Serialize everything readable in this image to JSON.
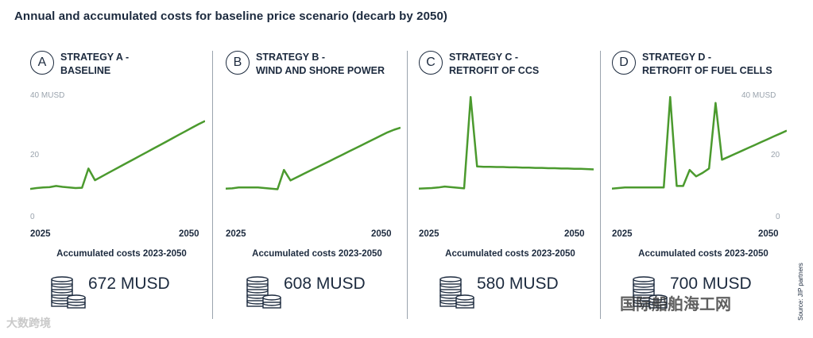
{
  "title": "Annual and accumulated costs for baseline price scenario (decarb by 2050)",
  "source": "Source: JIP partners",
  "watermarks": {
    "left": "大数跨境",
    "right": "国际船舶海工网"
  },
  "accumulated_label": "Accumulated costs 2023-2050",
  "line_color": "#4b9a2e",
  "panels": [
    {
      "letter": "A",
      "line1": "STRATEGY A -",
      "line2": "BASELINE",
      "total": "672 MUSD"
    },
    {
      "letter": "B",
      "line1": "STRATEGY B -",
      "line2": "WIND AND SHORE POWER",
      "total": "608 MUSD"
    },
    {
      "letter": "C",
      "line1": "STRATEGY C -",
      "line2": "RETROFIT OF CCS",
      "total": "580 MUSD"
    },
    {
      "letter": "D",
      "line1": "STRATEGY D -",
      "line2": "RETROFIT OF FUEL CELLS",
      "total": "700 MUSD"
    }
  ],
  "chart_data": [
    {
      "type": "line",
      "title": "STRATEGY A - BASELINE",
      "xlim": [
        2023,
        2050
      ],
      "ylim": [
        0,
        40
      ],
      "x_ticks": [
        "2025",
        "2050"
      ],
      "y_ticks": [
        "40 MUSD",
        "20",
        "0"
      ],
      "x": [
        2023,
        2024,
        2025,
        2026,
        2027,
        2028,
        2029,
        2030,
        2031,
        2032,
        2033,
        2034,
        2035,
        2036,
        2037,
        2038,
        2039,
        2040,
        2041,
        2042,
        2043,
        2044,
        2045,
        2046,
        2047,
        2048,
        2049,
        2050
      ],
      "y": [
        9.5,
        9.8,
        10,
        10.1,
        10.5,
        10.2,
        10,
        9.8,
        9.9,
        16.5,
        12.5,
        13.7,
        14.9,
        16.1,
        17.3,
        18.5,
        19.7,
        20.9,
        22.1,
        23.3,
        24.5,
        25.7,
        26.9,
        28.1,
        29.3,
        30.5,
        31.7,
        32.8
      ]
    },
    {
      "type": "line",
      "title": "STRATEGY B - WIND AND SHORE POWER",
      "xlim": [
        2023,
        2050
      ],
      "ylim": [
        0,
        40
      ],
      "x_ticks": [
        "2025",
        "2050"
      ],
      "y_ticks": [],
      "x": [
        2023,
        2024,
        2025,
        2026,
        2027,
        2028,
        2029,
        2030,
        2031,
        2032,
        2033,
        2034,
        2035,
        2036,
        2037,
        2038,
        2039,
        2040,
        2041,
        2042,
        2043,
        2044,
        2045,
        2046,
        2047,
        2048,
        2049,
        2050
      ],
      "y": [
        9.6,
        9.7,
        10,
        10,
        10,
        10,
        9.8,
        9.6,
        9.4,
        16,
        12.4,
        13.5,
        14.6,
        15.7,
        16.8,
        17.9,
        19,
        20.1,
        21.2,
        22.3,
        23.4,
        24.5,
        25.6,
        26.7,
        27.8,
        28.9,
        29.8,
        30.5
      ]
    },
    {
      "type": "line",
      "title": "STRATEGY C - RETROFIT OF CCS",
      "xlim": [
        2023,
        2050
      ],
      "ylim": [
        0,
        40
      ],
      "x_ticks": [
        "2025",
        "2050"
      ],
      "y_ticks": [],
      "x": [
        2023,
        2024,
        2025,
        2026,
        2027,
        2028,
        2029,
        2030,
        2031,
        2032,
        2033,
        2034,
        2035,
        2036,
        2037,
        2038,
        2039,
        2040,
        2041,
        2042,
        2043,
        2044,
        2045,
        2046,
        2047,
        2048,
        2049,
        2050
      ],
      "y": [
        9.6,
        9.7,
        9.8,
        10,
        10.3,
        10.1,
        9.9,
        9.7,
        41,
        17.2,
        17.1,
        17.1,
        17,
        17,
        16.9,
        16.9,
        16.8,
        16.8,
        16.7,
        16.7,
        16.6,
        16.6,
        16.5,
        16.5,
        16.4,
        16.4,
        16.3,
        16.2
      ]
    },
    {
      "type": "line",
      "title": "STRATEGY D - RETROFIT OF FUEL CELLS",
      "xlim": [
        2023,
        2050
      ],
      "ylim": [
        0,
        40
      ],
      "x_ticks": [
        "2025",
        "2050"
      ],
      "y_ticks": [
        "40 MUSD",
        "20",
        "0"
      ],
      "x": [
        2023,
        2024,
        2025,
        2026,
        2027,
        2028,
        2029,
        2030,
        2031,
        2032,
        2033,
        2034,
        2035,
        2036,
        2037,
        2038,
        2039,
        2040,
        2041,
        2042,
        2043,
        2044,
        2045,
        2046,
        2047,
        2048,
        2049,
        2050
      ],
      "y": [
        9.6,
        9.8,
        10,
        10,
        10,
        10,
        10,
        10,
        10,
        41,
        10.5,
        10.5,
        16,
        13.8,
        15,
        16.5,
        39,
        19.5,
        20.5,
        21.5,
        22.5,
        23.5,
        24.5,
        25.5,
        26.5,
        27.5,
        28.5,
        29.5
      ]
    }
  ]
}
